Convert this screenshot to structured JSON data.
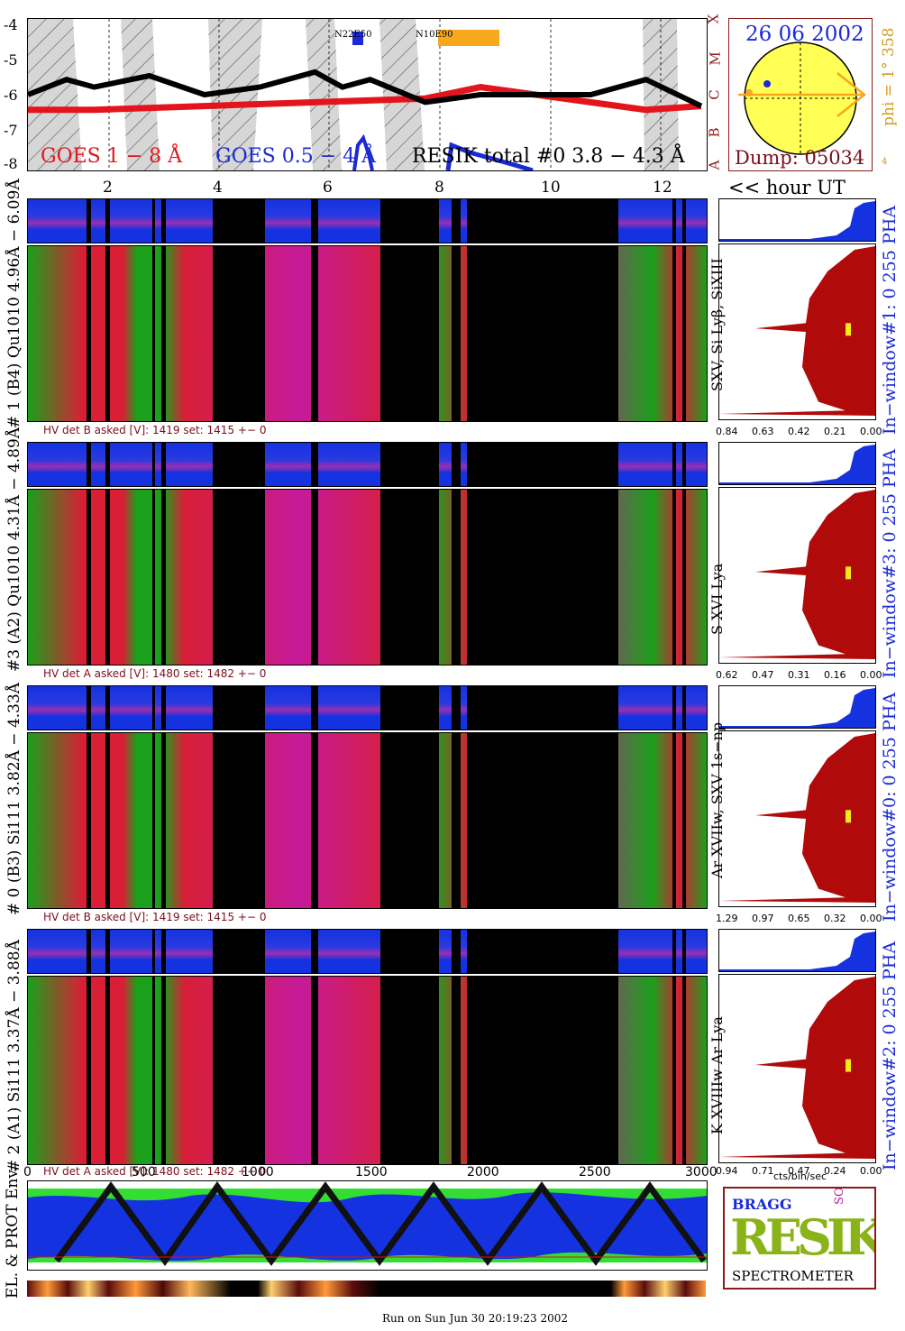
{
  "goes": {
    "yticks": [
      "-4",
      "-5",
      "-6",
      "-7",
      "-8"
    ],
    "class_letters": [
      "X",
      "M",
      "C",
      "B",
      "A"
    ],
    "label_red": "GOES 1 − 8 Å",
    "label_blue": "GOES 0.5 − 4 Å",
    "label_black": "RESIK total #0  3.8 − 4.3 Å",
    "region1": "N22E50",
    "region2": "N10E90",
    "hour_ticks": [
      "2",
      "4",
      "6",
      "8",
      "10",
      "12"
    ],
    "hour_label": "<< hour UT"
  },
  "sun": {
    "date": "26 06 2002",
    "dump": "Dump: 05034",
    "phi_label": "phi =",
    "phi_value": "1° 358",
    "phi_small": "4"
  },
  "panels": [
    {
      "vlabel": "# 1 (B4) Qu1010 4.96Å − 6.09Å",
      "hv": "HV det B asked [V]:  1419 set:  1415  +−    0",
      "line_label": "SXV, Si Lyβ, SiXIII",
      "pha_label": "In−window#1:   0 255  PHA",
      "xticks": [
        "0.84",
        "0.63",
        "0.42",
        "0.21",
        "0.00"
      ]
    },
    {
      "vlabel": "#3 (A2) Qu1010  4.31Å − 4.89Å",
      "hv": "HV det A asked [V]:  1480 set:  1482  +−    0",
      "line_label": "S XVI Lya",
      "pha_label": "In−window#3:   0 255 PHA",
      "xticks": [
        "0.62",
        "0.47",
        "0.31",
        "0.16",
        "0.00"
      ]
    },
    {
      "vlabel": "# 0 (B3) Si111  3.82Å − 4.33Å",
      "hv": "HV det B asked [V]:  1419 set:  1415  +−    0",
      "line_label": "Ar XVIIw, SXV 1s−np",
      "pha_label": "In−window#0:   0 255  PHA",
      "xticks": [
        "1.29",
        "0.97",
        "0.65",
        "0.32",
        "0.00"
      ]
    },
    {
      "vlabel": "# 2 (A1) Si111  3.37Å −  3.88Å",
      "hv": "HV det A asked [V]:  1480 set:  1482  +−    0",
      "line_label": "K XVIIIw  Ar Lya",
      "pha_label": "In−window#2:   0 255  PHA",
      "xticks": [
        "0.94",
        "0.71",
        "0.47",
        "0.24",
        "0.00"
      ]
    }
  ],
  "histo_xlabel": "cts/bin/sec",
  "bottom": {
    "xticks": [
      "0",
      "500",
      "1000",
      "1500",
      "2000",
      "2500",
      "3000"
    ],
    "vlabel": "EL. & PROT Env."
  },
  "logo": {
    "bragg": "BRAGG",
    "resik": "RESIK",
    "solar": "SOLAR",
    "spectrometer": "SPECTROMETER"
  },
  "footer": "Run on Sun Jun 30 20:19:23 2002",
  "chart_data": [
    {
      "type": "line",
      "title": "",
      "xlabel": "<< hour UT",
      "ylabel": "",
      "xlim": [
        0.8,
        13.1
      ],
      "ylim": [
        -8,
        -4
      ],
      "series": [
        {
          "name": "GOES 1 − 8 Å",
          "x": [
            0.8,
            2,
            4,
            6,
            8,
            9,
            10,
            11,
            12,
            13
          ],
          "values": [
            -6.4,
            -6.4,
            -6.3,
            -6.2,
            -6.1,
            -5.8,
            -6.0,
            -6.2,
            -6.4,
            -6.3
          ]
        },
        {
          "name": "RESIK total #0  3.8 − 4.3 Å",
          "x": [
            0.8,
            1.5,
            2,
            3,
            4,
            5,
            6,
            6.5,
            7,
            8,
            9,
            10,
            11,
            12,
            13
          ],
          "values": [
            -6.0,
            -5.6,
            -5.8,
            -5.5,
            -6.0,
            -5.8,
            -5.4,
            -5.8,
            -5.6,
            -6.2,
            -6.0,
            -6.0,
            -6.0,
            -5.6,
            -6.3
          ]
        }
      ]
    }
  ]
}
